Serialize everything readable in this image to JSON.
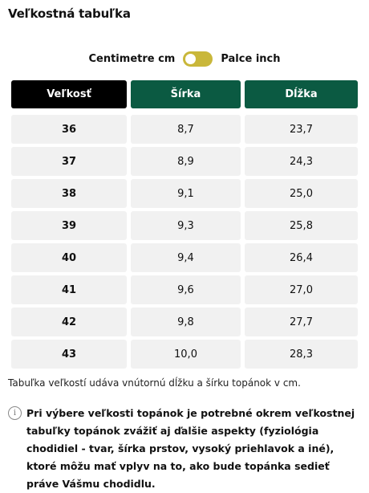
{
  "title": "Veľkostná tabuľka",
  "units": {
    "left_label": "Centimetre cm",
    "right_label": "Palce inch",
    "toggle_state": "cm"
  },
  "table": {
    "headers": [
      "Veľkosť",
      "Šírka",
      "Dĺžka"
    ],
    "rows": [
      [
        "36",
        "8,7",
        "23,7"
      ],
      [
        "37",
        "8,9",
        "24,3"
      ],
      [
        "38",
        "9,1",
        "25,0"
      ],
      [
        "39",
        "9,3",
        "25,8"
      ],
      [
        "40",
        "9,4",
        "26,4"
      ],
      [
        "41",
        "9,6",
        "27,0"
      ],
      [
        "42",
        "9,8",
        "27,7"
      ],
      [
        "43",
        "10,0",
        "28,3"
      ]
    ]
  },
  "note": "Tabuľka veľkostí udáva vnútornú dĺžku a šírku topánok v cm.",
  "info": {
    "icon": "info-icon",
    "text": "Pri výbere veľkosti topánok je potrebné okrem veľkostnej tabuľky topánok zvážiť aj ďalšie aspekty (fyziológia chodidiel - tvar, šírka prstov, vysoký priehlavok a iné), ktoré môžu mať vplyv na to, ako bude topánka sedieť práve Vášmu chodidlu."
  },
  "colors": {
    "size_header": "#000000",
    "dimension_header": "#0b5a42",
    "toggle": "#c9b73a",
    "cell_bg": "#f1f1f1"
  }
}
